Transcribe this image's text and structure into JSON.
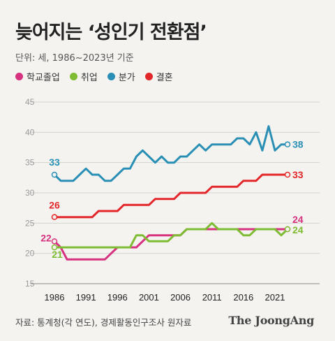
{
  "title": "늦어지는 ‘성인기 전환점’",
  "unit_label": "단위: 세, 1986~2023년 기준",
  "legend": [
    {
      "label": "학교졸업",
      "color": "#d6327f"
    },
    {
      "label": "취업",
      "color": "#7ebd33"
    },
    {
      "label": "분가",
      "color": "#2a8fb5"
    },
    {
      "label": "결혼",
      "color": "#e3262a"
    }
  ],
  "source": "자료: 통계청(각 연도), 경제활동인구조사 원자료",
  "logo": "The JoongAng",
  "chart_data": {
    "type": "line",
    "x_ticks": [
      1986,
      1991,
      1996,
      2001,
      2006,
      2011,
      2016,
      2021
    ],
    "y_ticks": [
      15,
      20,
      25,
      30,
      35,
      40,
      45
    ],
    "ylim": [
      15,
      45
    ],
    "xlim": [
      1986,
      2023
    ],
    "grid": true,
    "series": [
      {
        "name": "학교졸업",
        "color": "#d6327f",
        "points": [
          [
            1986,
            22
          ],
          [
            1987,
            21
          ],
          [
            1988,
            19
          ],
          [
            1989,
            19
          ],
          [
            1990,
            19
          ],
          [
            1991,
            19
          ],
          [
            1992,
            19
          ],
          [
            1993,
            19
          ],
          [
            1994,
            19
          ],
          [
            1995,
            20
          ],
          [
            1996,
            21
          ],
          [
            1997,
            21
          ],
          [
            1998,
            21
          ],
          [
            1999,
            21
          ],
          [
            2000,
            22
          ],
          [
            2001,
            23
          ],
          [
            2002,
            23
          ],
          [
            2003,
            23
          ],
          [
            2004,
            23
          ],
          [
            2005,
            23
          ],
          [
            2006,
            23
          ],
          [
            2007,
            24
          ],
          [
            2008,
            24
          ],
          [
            2009,
            24
          ],
          [
            2010,
            24
          ],
          [
            2011,
            24
          ],
          [
            2012,
            24
          ],
          [
            2013,
            24
          ],
          [
            2014,
            24
          ],
          [
            2015,
            24
          ],
          [
            2016,
            24
          ],
          [
            2017,
            24
          ],
          [
            2018,
            24
          ],
          [
            2019,
            24
          ],
          [
            2020,
            24
          ],
          [
            2021,
            24
          ],
          [
            2022,
            24
          ],
          [
            2023,
            24
          ]
        ],
        "start_label": "22",
        "end_label": "24"
      },
      {
        "name": "취업",
        "color": "#7ebd33",
        "points": [
          [
            1986,
            21
          ],
          [
            1987,
            21
          ],
          [
            1988,
            21
          ],
          [
            1989,
            21
          ],
          [
            1990,
            21
          ],
          [
            1991,
            21
          ],
          [
            1992,
            21
          ],
          [
            1993,
            21
          ],
          [
            1994,
            21
          ],
          [
            1995,
            21
          ],
          [
            1996,
            21
          ],
          [
            1997,
            21
          ],
          [
            1998,
            21
          ],
          [
            1999,
            23
          ],
          [
            2000,
            23
          ],
          [
            2001,
            22
          ],
          [
            2002,
            22
          ],
          [
            2003,
            22
          ],
          [
            2004,
            22
          ],
          [
            2005,
            23
          ],
          [
            2006,
            23
          ],
          [
            2007,
            24
          ],
          [
            2008,
            24
          ],
          [
            2009,
            24
          ],
          [
            2010,
            24
          ],
          [
            2011,
            25
          ],
          [
            2012,
            24
          ],
          [
            2013,
            24
          ],
          [
            2014,
            24
          ],
          [
            2015,
            24
          ],
          [
            2016,
            23
          ],
          [
            2017,
            23
          ],
          [
            2018,
            24
          ],
          [
            2019,
            24
          ],
          [
            2020,
            24
          ],
          [
            2021,
            24
          ],
          [
            2022,
            23
          ],
          [
            2023,
            24
          ]
        ],
        "start_label": "21",
        "end_label": "24"
      },
      {
        "name": "분가",
        "color": "#2a8fb5",
        "points": [
          [
            1986,
            33
          ],
          [
            1987,
            32
          ],
          [
            1988,
            32
          ],
          [
            1989,
            32
          ],
          [
            1990,
            33
          ],
          [
            1991,
            34
          ],
          [
            1992,
            33
          ],
          [
            1993,
            33
          ],
          [
            1994,
            32
          ],
          [
            1995,
            32
          ],
          [
            1996,
            33
          ],
          [
            1997,
            34
          ],
          [
            1998,
            34
          ],
          [
            1999,
            36
          ],
          [
            2000,
            37
          ],
          [
            2001,
            36
          ],
          [
            2002,
            35
          ],
          [
            2003,
            36
          ],
          [
            2004,
            35
          ],
          [
            2005,
            35
          ],
          [
            2006,
            36
          ],
          [
            2007,
            36
          ],
          [
            2008,
            37
          ],
          [
            2009,
            38
          ],
          [
            2010,
            37
          ],
          [
            2011,
            38
          ],
          [
            2012,
            38
          ],
          [
            2013,
            38
          ],
          [
            2014,
            38
          ],
          [
            2015,
            39
          ],
          [
            2016,
            39
          ],
          [
            2017,
            38
          ],
          [
            2018,
            40
          ],
          [
            2019,
            37
          ],
          [
            2020,
            41
          ],
          [
            2021,
            37
          ],
          [
            2022,
            38
          ],
          [
            2023,
            38
          ]
        ],
        "start_label": "33",
        "end_label": "38"
      },
      {
        "name": "결혼",
        "color": "#e3262a",
        "points": [
          [
            1986,
            26
          ],
          [
            1987,
            26
          ],
          [
            1988,
            26
          ],
          [
            1989,
            26
          ],
          [
            1990,
            26
          ],
          [
            1991,
            26
          ],
          [
            1992,
            26
          ],
          [
            1993,
            27
          ],
          [
            1994,
            27
          ],
          [
            1995,
            27
          ],
          [
            1996,
            27
          ],
          [
            1997,
            28
          ],
          [
            1998,
            28
          ],
          [
            1999,
            28
          ],
          [
            2000,
            28
          ],
          [
            2001,
            28
          ],
          [
            2002,
            29
          ],
          [
            2003,
            29
          ],
          [
            2004,
            29
          ],
          [
            2005,
            29
          ],
          [
            2006,
            30
          ],
          [
            2007,
            30
          ],
          [
            2008,
            30
          ],
          [
            2009,
            30
          ],
          [
            2010,
            30
          ],
          [
            2011,
            31
          ],
          [
            2012,
            31
          ],
          [
            2013,
            31
          ],
          [
            2014,
            31
          ],
          [
            2015,
            31
          ],
          [
            2016,
            32
          ],
          [
            2017,
            32
          ],
          [
            2018,
            32
          ],
          [
            2019,
            33
          ],
          [
            2020,
            33
          ],
          [
            2021,
            33
          ],
          [
            2022,
            33
          ],
          [
            2023,
            33
          ]
        ],
        "start_label": "26",
        "end_label": "33"
      }
    ]
  }
}
